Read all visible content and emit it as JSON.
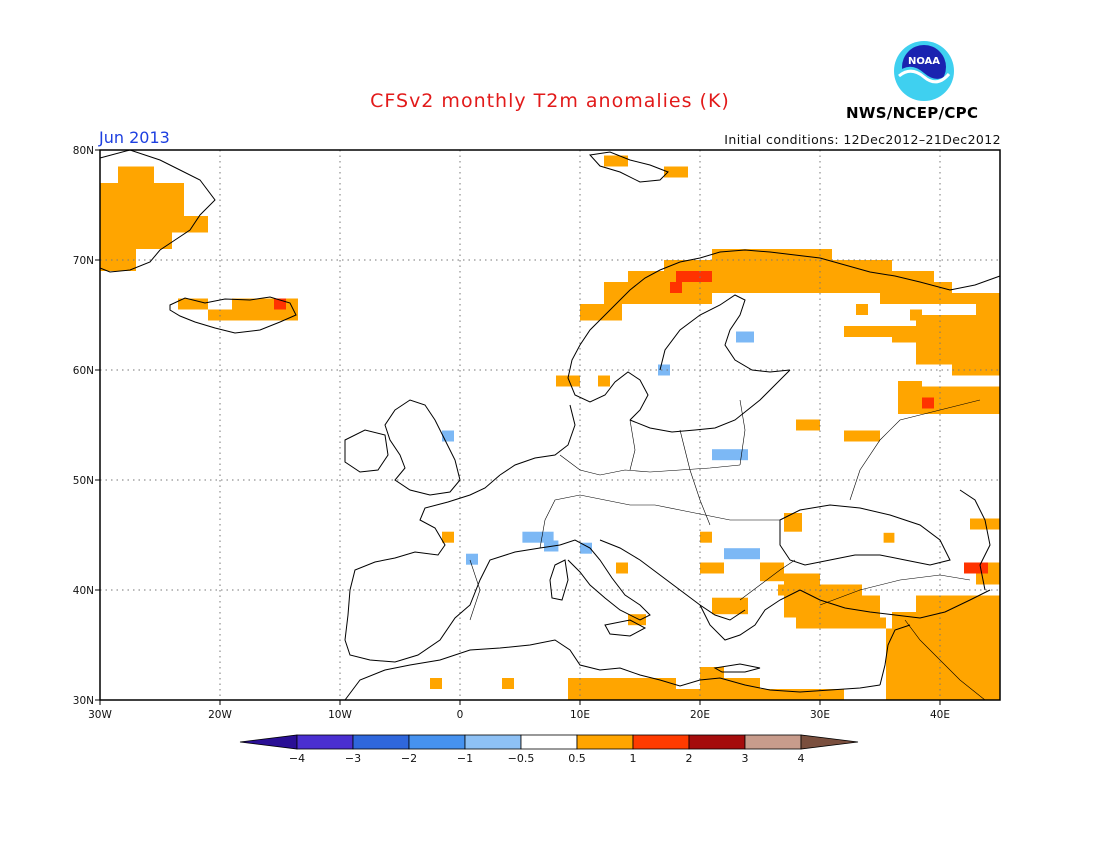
{
  "header": {
    "title": "CFSv2 monthly T2m anomalies (K)",
    "month": "Jun 2013",
    "initial_conditions": "Initial conditions: 12Dec2012–21Dec2012",
    "agency": "NWS/NCEP/CPC",
    "logo_text": "NOAA"
  },
  "map": {
    "lon_range": [
      -30,
      45
    ],
    "lat_range": [
      30,
      80
    ],
    "lat_ticks": [
      {
        "value": 30,
        "label": "30N"
      },
      {
        "value": 40,
        "label": "40N"
      },
      {
        "value": 50,
        "label": "50N"
      },
      {
        "value": 60,
        "label": "60N"
      },
      {
        "value": 70,
        "label": "70N"
      },
      {
        "value": 80,
        "label": "80N"
      }
    ],
    "lon_ticks": [
      {
        "value": -30,
        "label": "30W"
      },
      {
        "value": -20,
        "label": "20W"
      },
      {
        "value": -10,
        "label": "10W"
      },
      {
        "value": 0,
        "label": "0"
      },
      {
        "value": 10,
        "label": "10E"
      },
      {
        "value": 20,
        "label": "20E"
      },
      {
        "value": 30,
        "label": "30E"
      },
      {
        "value": 40,
        "label": "40E"
      }
    ],
    "grid": true,
    "anomaly_colors": {
      "warm1": "#ffa500",
      "warm2": "#ff3300",
      "cool1": "#7cb8f5"
    },
    "anomaly_cells": [
      {
        "lon": -28.5,
        "lat": 78.5,
        "lon2": -25.5,
        "lat2": 77,
        "level": "warm1"
      },
      {
        "lon": -30,
        "lat": 77,
        "lon2": -23,
        "lat2": 75.5,
        "level": "warm1"
      },
      {
        "lon": -30,
        "lat": 75.5,
        "lon2": -23,
        "lat2": 74,
        "level": "warm1"
      },
      {
        "lon": -30,
        "lat": 74,
        "lon2": -21,
        "lat2": 72.5,
        "level": "warm1"
      },
      {
        "lon": -30,
        "lat": 72.5,
        "lon2": -24,
        "lat2": 71,
        "level": "warm1"
      },
      {
        "lon": -30,
        "lat": 71,
        "lon2": -27,
        "lat2": 69,
        "level": "warm1"
      },
      {
        "lon": -23.5,
        "lat": 66.5,
        "lon2": -21,
        "lat2": 65.5,
        "level": "warm1"
      },
      {
        "lon": -19,
        "lat": 66.5,
        "lon2": -13.5,
        "lat2": 65.5,
        "level": "warm1"
      },
      {
        "lon": -21,
        "lat": 65.5,
        "lon2": -13.5,
        "lat2": 64.5,
        "level": "warm1"
      },
      {
        "lon": -15.5,
        "lat": 66.5,
        "lon2": -14.5,
        "lat2": 65.5,
        "level": "warm2"
      },
      {
        "lon": 12,
        "lat": 79.5,
        "lon2": 14,
        "lat2": 78.5,
        "level": "warm1"
      },
      {
        "lon": 17,
        "lat": 78.5,
        "lon2": 19,
        "lat2": 77.5,
        "level": "warm1"
      },
      {
        "lon": 21,
        "lat": 71,
        "lon2": 31,
        "lat2": 70,
        "level": "warm1"
      },
      {
        "lon": 17,
        "lat": 70,
        "lon2": 36,
        "lat2": 69,
        "level": "warm1"
      },
      {
        "lon": 14,
        "lat": 69,
        "lon2": 39.5,
        "lat2": 68,
        "level": "warm1"
      },
      {
        "lon": 12,
        "lat": 68,
        "lon2": 41,
        "lat2": 67,
        "level": "warm1"
      },
      {
        "lon": 12,
        "lat": 67,
        "lon2": 21,
        "lat2": 66,
        "level": "warm1"
      },
      {
        "lon": 35,
        "lat": 67,
        "lon2": 45,
        "lat2": 66,
        "level": "warm1"
      },
      {
        "lon": 10,
        "lat": 66,
        "lon2": 13.5,
        "lat2": 64.5,
        "level": "warm1"
      },
      {
        "lon": 18,
        "lat": 69,
        "lon2": 21,
        "lat2": 68,
        "level": "warm2"
      },
      {
        "lon": 17.5,
        "lat": 68,
        "lon2": 18.5,
        "lat2": 67,
        "level": "warm2"
      },
      {
        "lon": 33,
        "lat": 66,
        "lon2": 34,
        "lat2": 65,
        "level": "warm1"
      },
      {
        "lon": 37.5,
        "lat": 65.5,
        "lon2": 38.5,
        "lat2": 64.5,
        "level": "warm1"
      },
      {
        "lon": 43,
        "lat": 66,
        "lon2": 45,
        "lat2": 65,
        "level": "warm1"
      },
      {
        "lon": 38,
        "lat": 65,
        "lon2": 45,
        "lat2": 62.5,
        "level": "warm1"
      },
      {
        "lon": 32,
        "lat": 64,
        "lon2": 36,
        "lat2": 63,
        "level": "warm1"
      },
      {
        "lon": 36,
        "lat": 64,
        "lon2": 38,
        "lat2": 62.5,
        "level": "warm1"
      },
      {
        "lon": 38,
        "lat": 62.5,
        "lon2": 45,
        "lat2": 60.5,
        "level": "warm1"
      },
      {
        "lon": 41,
        "lat": 60.5,
        "lon2": 45,
        "lat2": 59.5,
        "level": "warm1"
      },
      {
        "lon": 36.5,
        "lat": 59,
        "lon2": 38.5,
        "lat2": 57.5,
        "level": "warm1"
      },
      {
        "lon": 38.5,
        "lat": 58.5,
        "lon2": 45,
        "lat2": 57,
        "level": "warm1"
      },
      {
        "lon": 36.5,
        "lat": 57.5,
        "lon2": 45,
        "lat2": 56,
        "level": "warm1"
      },
      {
        "lon": 38.5,
        "lat": 57.5,
        "lon2": 39.5,
        "lat2": 56.5,
        "level": "warm2"
      },
      {
        "lon": 28,
        "lat": 55.5,
        "lon2": 30,
        "lat2": 54.5,
        "level": "warm1"
      },
      {
        "lon": 32,
        "lat": 54.5,
        "lon2": 35,
        "lat2": 53.5,
        "level": "warm1"
      },
      {
        "lon": 8,
        "lat": 59.5,
        "lon2": 10,
        "lat2": 58.5,
        "level": "warm1"
      },
      {
        "lon": 11.5,
        "lat": 59.5,
        "lon2": 12.5,
        "lat2": 58.5,
        "level": "warm1"
      },
      {
        "lon": 23,
        "lat": 63.5,
        "lon2": 24.5,
        "lat2": 62.5,
        "level": "cool1"
      },
      {
        "lon": 16.5,
        "lat": 60.5,
        "lon2": 17.5,
        "lat2": 59.5,
        "level": "cool1"
      },
      {
        "lon": -1.5,
        "lat": 54.5,
        "lon2": -0.5,
        "lat2": 53.5,
        "level": "cool1"
      },
      {
        "lon": 21,
        "lat": 52.8,
        "lon2": 24,
        "lat2": 51.8,
        "level": "cool1"
      },
      {
        "lon": 27,
        "lat": 47,
        "lon2": 28.5,
        "lat2": 45.3,
        "level": "warm1"
      },
      {
        "lon": 42.5,
        "lat": 46.5,
        "lon2": 45,
        "lat2": 45.5,
        "level": "warm1"
      },
      {
        "lon": 35.3,
        "lat": 45.2,
        "lon2": 36.2,
        "lat2": 44.3,
        "level": "warm1"
      },
      {
        "lon": -1.5,
        "lat": 45.3,
        "lon2": -0.5,
        "lat2": 44.3,
        "level": "warm1"
      },
      {
        "lon": 0.5,
        "lat": 43.3,
        "lon2": 1.5,
        "lat2": 42.3,
        "level": "cool1"
      },
      {
        "lon": 5.2,
        "lat": 45.3,
        "lon2": 7.8,
        "lat2": 44.3,
        "level": "cool1"
      },
      {
        "lon": 7,
        "lat": 44.5,
        "lon2": 8.2,
        "lat2": 43.5,
        "level": "cool1"
      },
      {
        "lon": 10,
        "lat": 44.3,
        "lon2": 11,
        "lat2": 43.3,
        "level": "cool1"
      },
      {
        "lon": 20,
        "lat": 45.3,
        "lon2": 21,
        "lat2": 44.3,
        "level": "warm1"
      },
      {
        "lon": 22,
        "lat": 43.8,
        "lon2": 25,
        "lat2": 42.8,
        "level": "cool1"
      },
      {
        "lon": 13,
        "lat": 42.5,
        "lon2": 14,
        "lat2": 41.5,
        "level": "warm1"
      },
      {
        "lon": 20,
        "lat": 42.5,
        "lon2": 22,
        "lat2": 41.5,
        "level": "warm1"
      },
      {
        "lon": 25,
        "lat": 42.5,
        "lon2": 27,
        "lat2": 40.8,
        "level": "warm1"
      },
      {
        "lon": 27,
        "lat": 41.5,
        "lon2": 30,
        "lat2": 40.5,
        "level": "warm1"
      },
      {
        "lon": 42,
        "lat": 42.5,
        "lon2": 44,
        "lat2": 41.5,
        "level": "warm2"
      },
      {
        "lon": 44,
        "lat": 42.5,
        "lon2": 45,
        "lat2": 41.5,
        "level": "warm1"
      },
      {
        "lon": 43,
        "lat": 41.5,
        "lon2": 45,
        "lat2": 40.5,
        "level": "warm1"
      },
      {
        "lon": 21,
        "lat": 39.3,
        "lon2": 24,
        "lat2": 37.8,
        "level": "warm1"
      },
      {
        "lon": 26.5,
        "lat": 40.5,
        "lon2": 33.5,
        "lat2": 39.5,
        "level": "warm1"
      },
      {
        "lon": 27,
        "lat": 39.5,
        "lon2": 35,
        "lat2": 37.5,
        "level": "warm1"
      },
      {
        "lon": 38,
        "lat": 39.5,
        "lon2": 45,
        "lat2": 38,
        "level": "warm1"
      },
      {
        "lon": 28,
        "lat": 37.5,
        "lon2": 35.5,
        "lat2": 36.5,
        "level": "warm1"
      },
      {
        "lon": 36,
        "lat": 38,
        "lon2": 45,
        "lat2": 36.5,
        "level": "warm1"
      },
      {
        "lon": 35.5,
        "lat": 36.5,
        "lon2": 45,
        "lat2": 30,
        "level": "warm1"
      },
      {
        "lon": 14,
        "lat": 37.8,
        "lon2": 15.5,
        "lat2": 36.8,
        "level": "warm1"
      },
      {
        "lon": -2.5,
        "lat": 32,
        "lon2": -1.5,
        "lat2": 31,
        "level": "warm1"
      },
      {
        "lon": 3.5,
        "lat": 32,
        "lon2": 4.5,
        "lat2": 31,
        "level": "warm1"
      },
      {
        "lon": 9,
        "lat": 32,
        "lon2": 18,
        "lat2": 30,
        "level": "warm1"
      },
      {
        "lon": 18,
        "lat": 31,
        "lon2": 20,
        "lat2": 30,
        "level": "warm1"
      },
      {
        "lon": 20,
        "lat": 33,
        "lon2": 22,
        "lat2": 30,
        "level": "warm1"
      },
      {
        "lon": 22,
        "lat": 32,
        "lon2": 25,
        "lat2": 30,
        "level": "warm1"
      },
      {
        "lon": 25,
        "lat": 31,
        "lon2": 32,
        "lat2": 30,
        "level": "warm1"
      }
    ]
  },
  "colorbar": {
    "labels": [
      "−4",
      "−3",
      "−2",
      "−1",
      "−0.5",
      "0.5",
      "1",
      "2",
      "3",
      "4"
    ],
    "colors": [
      "#4a2fd0",
      "#2f67dc",
      "#4692ef",
      "#8ec1f5",
      "#ffffff",
      "#ffa500",
      "#ff3b00",
      "#a50c0c",
      "#c89c8c"
    ],
    "under_color": "#2a0f95",
    "over_color": "#7a4f3e"
  }
}
